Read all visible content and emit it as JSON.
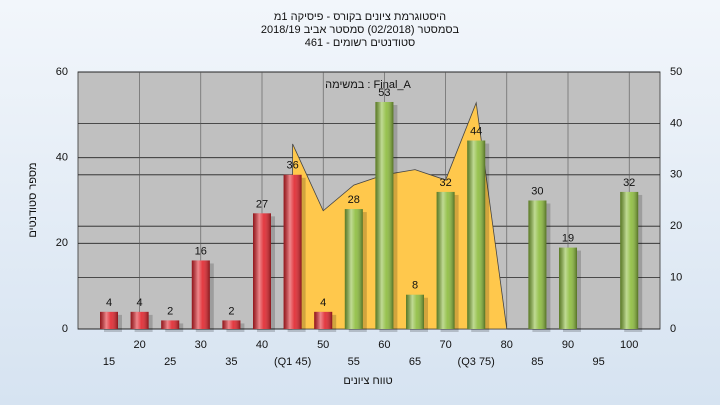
{
  "chart_data": {
    "type": "bar",
    "title": "היסטוגרמת ציונים בקורס - פיסיקה 1מ",
    "subtitle": [
      "בסמסטר  (02/2018)  סמסטר אביב 2018/19",
      "סטודנטים רשומים - 461"
    ],
    "annotation": "במשימה : Final_A",
    "x_label": "טווח ציונים",
    "y_label": "מספר סטודנטים",
    "categories": [
      "15",
      "20",
      "25",
      "30",
      "35",
      "40",
      "(Q1 45)",
      "50",
      "55",
      "60",
      "65",
      "70",
      "(Q3 75)",
      "80",
      "85",
      "90",
      "95",
      "100"
    ],
    "values": [
      4,
      4,
      2,
      16,
      2,
      27,
      36,
      4,
      28,
      53,
      8,
      32,
      44,
      null,
      30,
      19,
      null,
      32
    ],
    "colors": [
      "#e0242c",
      "#e0242c",
      "#e0242c",
      "#e0242c",
      "#e0242c",
      "#e0242c",
      "#e0242c",
      "#e0242c",
      "#8cbc3c",
      "#8cbc3c",
      "#8cbc3c",
      "#8cbc3c",
      "#8cbc3c",
      null,
      "#8cbc3c",
      "#8cbc3c",
      null,
      "#8cbc3c"
    ],
    "series": [
      {
        "type": "area",
        "axis": "y2",
        "color": "#ffc84c",
        "values": [
          null,
          null,
          null,
          null,
          null,
          null,
          36,
          23,
          28,
          30,
          31,
          29,
          44,
          0,
          null,
          null,
          null,
          null
        ]
      }
    ],
    "ylim": [
      0,
      60
    ],
    "yticks": [
      0,
      20,
      40,
      60
    ],
    "y2lim": [
      0,
      50
    ],
    "y2ticks": [
      0,
      10,
      20,
      30,
      40,
      50
    ],
    "grid": true
  }
}
